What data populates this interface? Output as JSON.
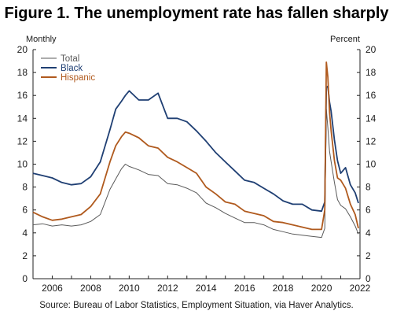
{
  "title": "Figure 1. The unemployment rate has fallen sharply",
  "left_unit": "Monthly",
  "right_unit": "Percent",
  "source": "Source: Bureau of Labor Statistics, Employment Situation, via Haver Analytics.",
  "chart_data": {
    "type": "line",
    "ylim": [
      0,
      20
    ],
    "xlim": [
      2005,
      2022
    ],
    "y_ticks": [
      0,
      2,
      4,
      6,
      8,
      10,
      12,
      14,
      16,
      18,
      20
    ],
    "y_tick_labels": [
      "0",
      "2",
      "4",
      "6",
      "8",
      "10",
      "12",
      "14",
      "16",
      "18",
      "20"
    ],
    "x_tick_labels": [
      "2006",
      "2008",
      "2010",
      "2012",
      "2014",
      "2016",
      "2018",
      "2020",
      "2022"
    ],
    "legend_position": "top-left",
    "grid": false,
    "series": [
      {
        "name": "Total",
        "color": "#5a5a5a",
        "x": [
          2005.0,
          2005.5,
          2006.0,
          2006.5,
          2007.0,
          2007.5,
          2008.0,
          2008.5,
          2009.0,
          2009.3,
          2009.6,
          2009.8,
          2010.0,
          2010.5,
          2011.0,
          2011.5,
          2012.0,
          2012.5,
          2013.0,
          2013.5,
          2014.0,
          2014.5,
          2015.0,
          2015.5,
          2016.0,
          2016.5,
          2017.0,
          2017.5,
          2018.0,
          2018.5,
          2019.0,
          2019.5,
          2020.0,
          2020.17,
          2020.25,
          2020.33,
          2020.42,
          2020.5,
          2020.67,
          2020.83,
          2021.0,
          2021.25,
          2021.5,
          2021.75,
          2021.92
        ],
        "values": [
          4.7,
          4.8,
          4.6,
          4.7,
          4.6,
          4.7,
          5.0,
          5.6,
          7.8,
          8.7,
          9.6,
          10.0,
          9.8,
          9.5,
          9.1,
          9.0,
          8.3,
          8.2,
          7.9,
          7.5,
          6.6,
          6.2,
          5.7,
          5.3,
          4.9,
          4.9,
          4.7,
          4.3,
          4.1,
          3.9,
          3.8,
          3.7,
          3.6,
          4.4,
          14.8,
          13.2,
          11.1,
          10.2,
          8.4,
          6.9,
          6.4,
          6.1,
          5.4,
          4.6,
          3.9
        ]
      },
      {
        "name": "Black",
        "color": "#1f3f73",
        "x": [
          2005.0,
          2005.5,
          2006.0,
          2006.5,
          2007.0,
          2007.5,
          2008.0,
          2008.5,
          2009.0,
          2009.3,
          2009.6,
          2009.8,
          2010.0,
          2010.5,
          2011.0,
          2011.5,
          2012.0,
          2012.5,
          2013.0,
          2013.5,
          2014.0,
          2014.5,
          2015.0,
          2015.5,
          2016.0,
          2016.5,
          2017.0,
          2017.5,
          2018.0,
          2018.5,
          2019.0,
          2019.5,
          2020.0,
          2020.17,
          2020.25,
          2020.33,
          2020.42,
          2020.5,
          2020.67,
          2020.83,
          2021.0,
          2021.25,
          2021.5,
          2021.75,
          2021.92
        ],
        "values": [
          9.2,
          9.0,
          8.8,
          8.4,
          8.2,
          8.3,
          8.9,
          10.2,
          13.0,
          14.8,
          15.5,
          16.0,
          16.4,
          15.6,
          15.6,
          16.2,
          14.0,
          14.0,
          13.7,
          12.9,
          12.0,
          11.0,
          10.2,
          9.4,
          8.6,
          8.4,
          7.9,
          7.4,
          6.8,
          6.5,
          6.5,
          6.0,
          5.9,
          6.7,
          16.7,
          16.8,
          15.4,
          14.6,
          12.1,
          10.3,
          9.2,
          9.7,
          8.2,
          7.5,
          6.6
        ]
      },
      {
        "name": "Hispanic",
        "color": "#b05a1e",
        "x": [
          2005.0,
          2005.5,
          2006.0,
          2006.5,
          2007.0,
          2007.5,
          2008.0,
          2008.5,
          2009.0,
          2009.3,
          2009.6,
          2009.8,
          2010.0,
          2010.5,
          2011.0,
          2011.5,
          2012.0,
          2012.5,
          2013.0,
          2013.5,
          2014.0,
          2014.5,
          2015.0,
          2015.5,
          2016.0,
          2016.5,
          2017.0,
          2017.5,
          2018.0,
          2018.5,
          2019.0,
          2019.5,
          2020.0,
          2020.17,
          2020.25,
          2020.33,
          2020.42,
          2020.5,
          2020.67,
          2020.83,
          2021.0,
          2021.25,
          2021.5,
          2021.75,
          2021.92
        ],
        "values": [
          5.8,
          5.4,
          5.1,
          5.2,
          5.4,
          5.6,
          6.3,
          7.4,
          10.2,
          11.6,
          12.4,
          12.8,
          12.7,
          12.3,
          11.6,
          11.4,
          10.6,
          10.2,
          9.7,
          9.2,
          8.0,
          7.4,
          6.7,
          6.5,
          5.9,
          5.7,
          5.5,
          5.0,
          4.9,
          4.7,
          4.5,
          4.3,
          4.3,
          6.0,
          18.9,
          17.6,
          14.5,
          12.9,
          10.3,
          8.8,
          8.6,
          7.9,
          6.5,
          5.6,
          4.4
        ]
      }
    ]
  }
}
